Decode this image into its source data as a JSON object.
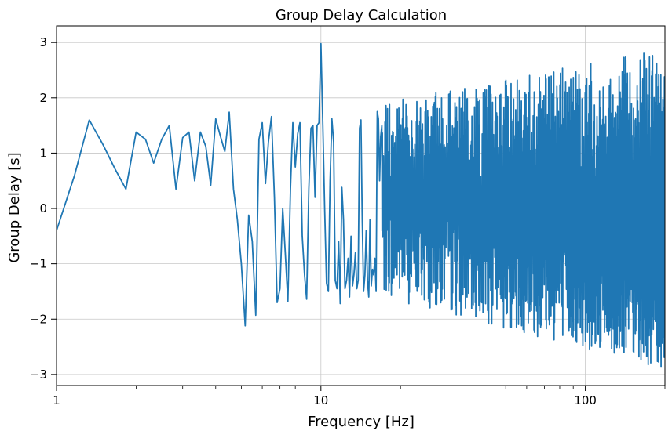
{
  "chart_data": {
    "type": "line",
    "title": "Group Delay Calculation",
    "xlabel": "Frequency [Hz]",
    "ylabel": "Group Delay [s]",
    "xscale": "log",
    "xlim": [
      1,
      200
    ],
    "ylim": [
      -3.2,
      3.3
    ],
    "grid": true,
    "line_color": "#1f77b4",
    "xticks": [
      {
        "value": 1,
        "label": "1"
      },
      {
        "value": 10,
        "label": "10"
      },
      {
        "value": 100,
        "label": "100"
      }
    ],
    "yticks": [
      {
        "value": 3,
        "label": "3"
      },
      {
        "value": 2,
        "label": "2"
      },
      {
        "value": 1,
        "label": "1"
      },
      {
        "value": 0,
        "label": "0"
      },
      {
        "value": -1,
        "label": "−1"
      },
      {
        "value": -2,
        "label": "−2"
      },
      {
        "value": -3,
        "label": "−3"
      }
    ],
    "series": [
      {
        "x": [
          1.0,
          1.17,
          1.33,
          1.5,
          1.67,
          1.83,
          2.0,
          2.17,
          2.33,
          2.5,
          2.67,
          2.83,
          3.0,
          3.17,
          3.33,
          3.5,
          3.67,
          3.83,
          4.0,
          4.17,
          4.33,
          4.5,
          4.67,
          4.83,
          5.0,
          5.17,
          5.33,
          5.5,
          5.67,
          5.83,
          6.0,
          6.17,
          6.33,
          6.5,
          6.67,
          6.83,
          7.0,
          7.17,
          7.33,
          7.5,
          7.67,
          7.83,
          8.0,
          8.17,
          8.33,
          8.5,
          8.67,
          8.83,
          9.0,
          9.17,
          9.33,
          9.5,
          9.67,
          9.83,
          10.0,
          10.17,
          10.33,
          10.5,
          10.67,
          10.83,
          11.0,
          11.17,
          11.33,
          11.5,
          11.67,
          11.83,
          12.0,
          12.17,
          12.33,
          12.5,
          12.67,
          12.83,
          13.0,
          13.17,
          13.33,
          13.5,
          13.67,
          13.83,
          14.0,
          14.17,
          14.33,
          14.5,
          14.67,
          14.83,
          15.0,
          15.17,
          15.33,
          15.5,
          15.67,
          15.83,
          16.0,
          16.17,
          16.33,
          16.5,
          16.67,
          16.83,
          17.0
        ],
        "y": [
          -0.4,
          0.6,
          1.6,
          1.15,
          0.7,
          0.35,
          1.38,
          1.25,
          0.82,
          1.25,
          1.5,
          0.35,
          1.28,
          1.38,
          0.5,
          1.38,
          1.12,
          0.42,
          1.62,
          1.3,
          1.03,
          1.74,
          0.35,
          -0.2,
          -1.0,
          -2.12,
          -0.12,
          -0.6,
          -1.93,
          1.25,
          1.55,
          0.45,
          1.2,
          1.66,
          0.2,
          -1.7,
          -1.45,
          0.0,
          -0.8,
          -1.68,
          0.35,
          1.55,
          0.75,
          1.35,
          1.55,
          -0.5,
          -1.2,
          -1.64,
          0.35,
          1.45,
          1.5,
          0.2,
          1.5,
          1.55,
          2.98,
          1.5,
          0.0,
          -1.35,
          -1.5,
          0.5,
          1.62,
          1.2,
          -1.3,
          -1.45,
          -0.6,
          -1.72,
          0.38,
          -0.2,
          -1.45,
          -1.3,
          -0.9,
          -1.6,
          -0.5,
          -1.4,
          -1.2,
          -0.8,
          -1.45,
          -1.3,
          1.45,
          1.6,
          -0.2,
          -1.5,
          -1.2,
          -0.4,
          -1.3,
          -1.6,
          -0.2,
          -1.4,
          -1.1,
          -1.2,
          -0.9,
          -1.5,
          1.75,
          1.62,
          0.5,
          1.3,
          1.5
        ]
      }
    ],
    "dense_band": {
      "x_start": 17.0,
      "x_end": 200.0,
      "y_min": -2.95,
      "y_max": 2.98,
      "point_count": 1100,
      "seed": 7
    }
  }
}
